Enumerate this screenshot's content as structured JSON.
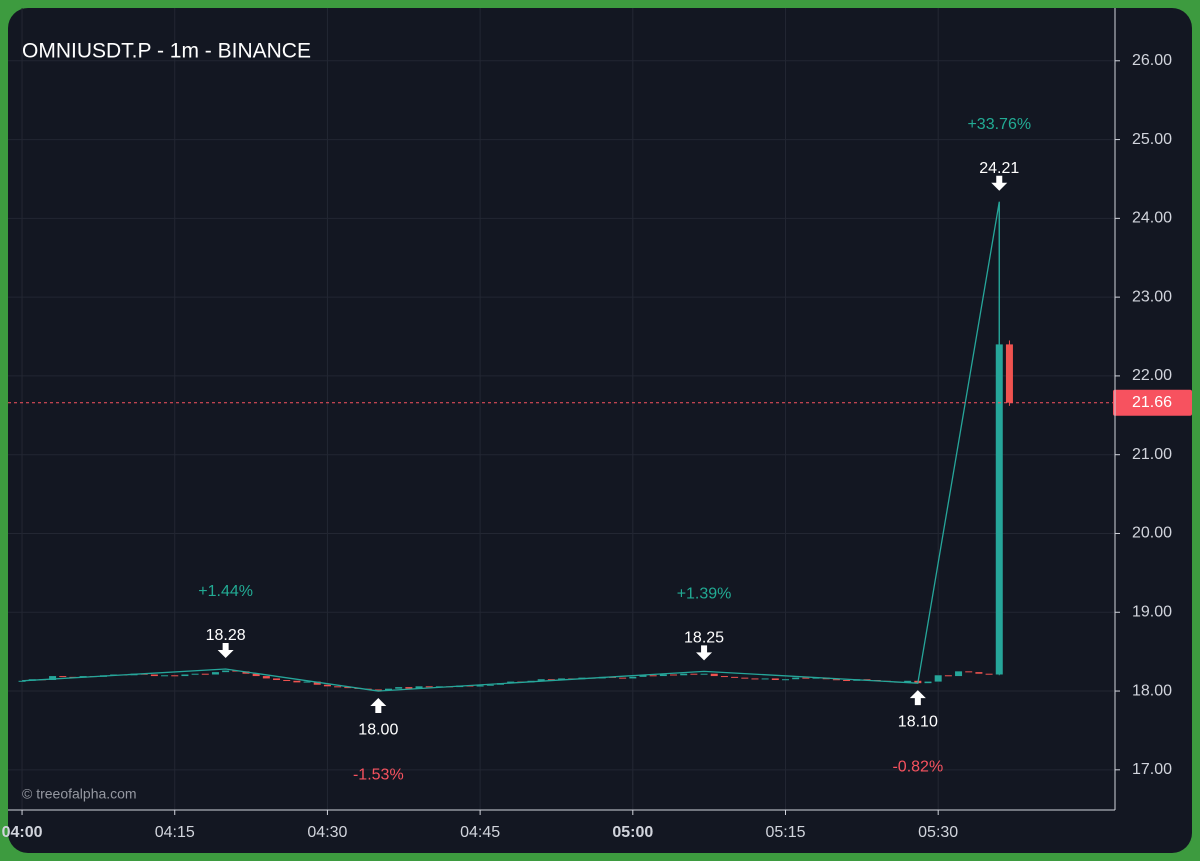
{
  "chart_data": {
    "type": "candlestick",
    "title": "OMNIUSDT.P - 1m - BINANCE",
    "watermark": "© treeofalpha.com",
    "x": [
      0,
      1,
      2,
      3,
      4,
      5,
      6,
      7,
      8,
      9,
      10,
      11,
      12,
      13,
      14,
      15,
      16,
      17,
      18,
      19,
      20,
      21,
      22,
      23,
      24,
      25,
      26,
      27,
      28,
      29,
      30,
      31,
      32,
      33,
      34,
      35,
      36,
      37,
      38,
      39,
      40,
      41,
      42,
      43,
      44,
      45,
      46,
      47,
      48,
      49,
      50,
      51,
      52,
      53,
      54,
      55,
      56,
      57,
      58,
      59,
      60,
      61,
      62,
      63,
      64,
      65,
      66,
      67,
      68,
      69,
      70,
      71,
      72,
      73,
      74,
      75,
      76,
      77,
      78,
      79,
      80,
      81,
      82,
      83,
      84,
      85,
      86,
      87,
      88,
      89,
      90,
      91,
      92,
      93,
      94,
      95,
      96,
      97
    ],
    "open": [
      18.12,
      18.13,
      18.15,
      18.14,
      18.19,
      18.18,
      18.17,
      18.19,
      18.18,
      18.2,
      18.21,
      18.2,
      18.22,
      18.21,
      18.19,
      18.2,
      18.19,
      18.21,
      18.22,
      18.21,
      18.24,
      18.26,
      18.25,
      18.22,
      18.19,
      18.16,
      18.14,
      18.13,
      18.11,
      18.12,
      18.08,
      18.06,
      18.05,
      18.04,
      18.03,
      18.02,
      18.01,
      18.03,
      18.05,
      18.03,
      18.06,
      18.05,
      18.06,
      18.05,
      18.07,
      18.06,
      18.07,
      18.08,
      18.1,
      18.12,
      18.11,
      18.13,
      18.15,
      18.14,
      18.16,
      18.15,
      18.17,
      18.16,
      18.18,
      18.17,
      18.16,
      18.18,
      18.2,
      18.19,
      18.21,
      18.2,
      18.22,
      18.21,
      18.22,
      18.19,
      18.18,
      18.17,
      18.16,
      18.15,
      18.16,
      18.14,
      18.15,
      18.17,
      18.16,
      18.17,
      18.15,
      18.14,
      18.13,
      18.15,
      18.14,
      18.13,
      18.12,
      18.11,
      18.13,
      18.1,
      18.12,
      18.2,
      18.19,
      18.25,
      18.24,
      18.22,
      18.21,
      22.4
    ],
    "high": [
      null,
      null,
      null,
      null,
      null,
      null,
      null,
      null,
      null,
      null,
      null,
      null,
      null,
      null,
      null,
      null,
      null,
      null,
      null,
      null,
      null,
      null,
      null,
      null,
      null,
      null,
      null,
      null,
      null,
      null,
      null,
      null,
      null,
      null,
      null,
      null,
      null,
      null,
      null,
      null,
      null,
      null,
      null,
      null,
      null,
      null,
      null,
      null,
      null,
      null,
      null,
      null,
      null,
      null,
      null,
      null,
      null,
      null,
      null,
      null,
      null,
      null,
      null,
      null,
      null,
      null,
      null,
      null,
      null,
      null,
      null,
      null,
      null,
      null,
      null,
      null,
      null,
      null,
      null,
      null,
      null,
      null,
      null,
      null,
      null,
      null,
      null,
      null,
      null,
      null,
      null,
      null,
      null,
      null,
      null,
      null,
      24.21,
      22.45
    ],
    "low": [
      null,
      null,
      null,
      null,
      null,
      null,
      null,
      null,
      null,
      null,
      null,
      null,
      null,
      null,
      null,
      null,
      null,
      null,
      null,
      null,
      null,
      null,
      null,
      null,
      null,
      null,
      null,
      null,
      null,
      null,
      null,
      null,
      null,
      null,
      null,
      null,
      null,
      null,
      null,
      null,
      null,
      null,
      null,
      null,
      null,
      null,
      null,
      null,
      null,
      null,
      null,
      null,
      null,
      null,
      null,
      null,
      null,
      null,
      null,
      null,
      null,
      null,
      null,
      null,
      null,
      null,
      null,
      null,
      null,
      null,
      null,
      null,
      null,
      null,
      null,
      null,
      null,
      null,
      null,
      null,
      null,
      null,
      null,
      null,
      null,
      null,
      null,
      null,
      null,
      null,
      null,
      null,
      null,
      null,
      null,
      null,
      18.2,
      21.62
    ],
    "close": [
      18.13,
      18.15,
      18.14,
      18.19,
      18.18,
      18.17,
      18.19,
      18.18,
      18.2,
      18.21,
      18.2,
      18.22,
      18.21,
      18.19,
      18.2,
      18.19,
      18.21,
      18.22,
      18.21,
      18.24,
      18.26,
      18.25,
      18.22,
      18.19,
      18.16,
      18.14,
      18.13,
      18.11,
      18.12,
      18.08,
      18.06,
      18.05,
      18.04,
      18.03,
      18.02,
      18.01,
      18.03,
      18.05,
      18.03,
      18.06,
      18.05,
      18.06,
      18.05,
      18.07,
      18.06,
      18.07,
      18.08,
      18.1,
      18.12,
      18.11,
      18.13,
      18.15,
      18.14,
      18.16,
      18.15,
      18.17,
      18.16,
      18.18,
      18.17,
      18.16,
      18.18,
      18.2,
      18.19,
      18.21,
      18.2,
      18.22,
      18.21,
      18.22,
      18.19,
      18.18,
      18.17,
      18.16,
      18.15,
      18.16,
      18.14,
      18.15,
      18.17,
      18.16,
      18.17,
      18.15,
      18.14,
      18.13,
      18.15,
      18.14,
      18.13,
      18.12,
      18.11,
      18.13,
      18.1,
      18.12,
      18.2,
      18.19,
      18.25,
      18.24,
      18.22,
      18.21,
      22.4,
      21.66
    ],
    "up_color": "#26a69a",
    "down_color": "#ef5350",
    "xlim": [
      -1.38,
      107.37
    ],
    "xticks": [
      {
        "value": 0,
        "label": "04:00"
      },
      {
        "value": 15,
        "label": "04:15"
      },
      {
        "value": 30,
        "label": "04:30"
      },
      {
        "value": 45,
        "label": "04:45"
      },
      {
        "value": 60,
        "label": "05:00"
      },
      {
        "value": 75,
        "label": "05:15"
      },
      {
        "value": 90,
        "label": "05:30"
      }
    ],
    "ylim": [
      16.49,
      26.67
    ],
    "yticks": [
      {
        "value": 17,
        "label": "17.00"
      },
      {
        "value": 18,
        "label": "18.00"
      },
      {
        "value": 19,
        "label": "19.00"
      },
      {
        "value": 20,
        "label": "20.00"
      },
      {
        "value": 21,
        "label": "21.00"
      },
      {
        "value": 22,
        "label": "22.00"
      },
      {
        "value": 23,
        "label": "23.00"
      },
      {
        "value": 24,
        "label": "24.00"
      },
      {
        "value": 25,
        "label": "25.00"
      },
      {
        "value": 26,
        "label": "26.00"
      }
    ],
    "grid": true,
    "last_price": 21.66,
    "last_price_color": "#f7525f",
    "zigzag": {
      "color": "#26a69a",
      "x": [
        0,
        20,
        35,
        67,
        88,
        96,
        96
      ],
      "values": [
        18.13,
        18.28,
        18.0,
        18.25,
        18.1,
        24.21,
        22.4
      ]
    },
    "pivots": [
      {
        "x": 20,
        "value": 18.28,
        "change": "+1.44%",
        "position": "above"
      },
      {
        "x": 35,
        "value": 18.0,
        "change": "-1.53%",
        "position": "below"
      },
      {
        "x": 67,
        "value": 18.25,
        "change": "+1.39%",
        "position": "above"
      },
      {
        "x": 88,
        "value": 18.1,
        "change": "-0.82%",
        "position": "below"
      },
      {
        "x": 96,
        "value": 24.21,
        "change": "+33.76%",
        "position": "above"
      }
    ]
  }
}
